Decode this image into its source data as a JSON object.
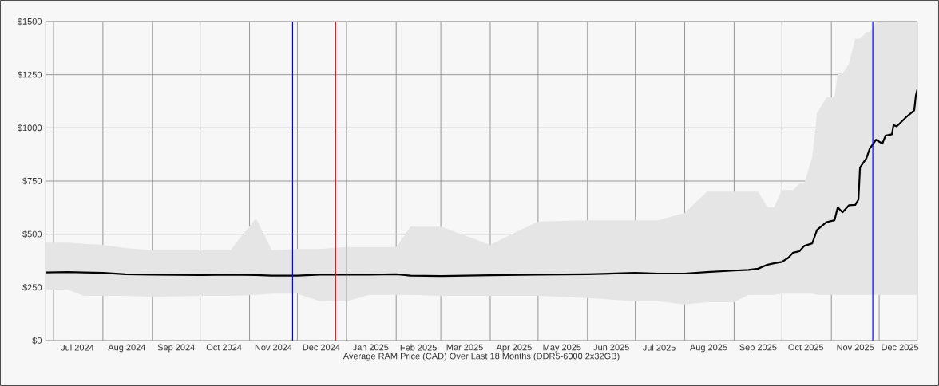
{
  "chart_data": {
    "type": "line",
    "xlabel": "Average RAM Price (CAD) Over Last 18 Months (DDR5-6000 2x32GB)",
    "xlim": [
      "2024-06-26",
      "2025-12-25"
    ],
    "ylim": [
      0,
      1500
    ],
    "xticks": [
      {
        "value": "2024-07-01",
        "label": null
      },
      {
        "value": "2024-07-16",
        "label": "Jul 2024"
      },
      {
        "value": "2024-08-01",
        "label": null
      },
      {
        "value": "2024-08-16",
        "label": "Aug 2024"
      },
      {
        "value": "2024-09-01",
        "label": null
      },
      {
        "value": "2024-09-16",
        "label": "Sep 2024"
      },
      {
        "value": "2024-10-01",
        "label": null
      },
      {
        "value": "2024-10-16",
        "label": "Oct 2024"
      },
      {
        "value": "2024-11-01",
        "label": null
      },
      {
        "value": "2024-11-16",
        "label": "Nov 2024"
      },
      {
        "value": "2024-12-01",
        "label": null
      },
      {
        "value": "2024-12-16",
        "label": "Dec 2024"
      },
      {
        "value": "2025-01-01",
        "label": null
      },
      {
        "value": "2025-01-16",
        "label": "Jan 2025"
      },
      {
        "value": "2025-02-01",
        "label": null
      },
      {
        "value": "2025-02-15",
        "label": "Feb 2025"
      },
      {
        "value": "2025-03-01",
        "label": null
      },
      {
        "value": "2025-03-16",
        "label": "Mar 2025"
      },
      {
        "value": "2025-04-01",
        "label": null
      },
      {
        "value": "2025-04-16",
        "label": "Apr 2025"
      },
      {
        "value": "2025-05-01",
        "label": null
      },
      {
        "value": "2025-05-16",
        "label": "May 2025"
      },
      {
        "value": "2025-06-01",
        "label": null
      },
      {
        "value": "2025-06-16",
        "label": "Jun 2025"
      },
      {
        "value": "2025-07-01",
        "label": null
      },
      {
        "value": "2025-07-16",
        "label": "Jul 2025"
      },
      {
        "value": "2025-08-01",
        "label": null
      },
      {
        "value": "2025-08-16",
        "label": "Aug 2025"
      },
      {
        "value": "2025-09-01",
        "label": null
      },
      {
        "value": "2025-09-16",
        "label": "Sep 2025"
      },
      {
        "value": "2025-10-01",
        "label": null
      },
      {
        "value": "2025-10-16",
        "label": "Oct 2025"
      },
      {
        "value": "2025-11-01",
        "label": null
      },
      {
        "value": "2025-11-16",
        "label": "Nov 2025"
      },
      {
        "value": "2025-12-01",
        "label": null
      },
      {
        "value": "2025-12-14",
        "label": "Dec 2025"
      }
    ],
    "yticks": [
      {
        "value": 0,
        "label": "$0"
      },
      {
        "value": 250,
        "label": "$250"
      },
      {
        "value": 500,
        "label": "$500"
      },
      {
        "value": 750,
        "label": "$750"
      },
      {
        "value": 1000,
        "label": "$1000"
      },
      {
        "value": 1250,
        "label": "$1250"
      },
      {
        "value": 1500,
        "label": "$1500"
      }
    ],
    "grid": true,
    "ref_lines": [
      {
        "axis": "x",
        "value": "2024-11-28",
        "color": "#0000ff"
      },
      {
        "axis": "x",
        "value": "2024-12-25",
        "color": "#ff0000"
      },
      {
        "axis": "x",
        "value": "2025-01-01",
        "color": "#666666"
      },
      {
        "axis": "x",
        "value": "2025-11-27",
        "color": "#0000ff"
      }
    ],
    "series": [
      {
        "color": "#000000",
        "x": [
          "2024-06-26",
          "2024-07-10",
          "2024-07-20",
          "2024-08-01",
          "2024-08-15",
          "2024-09-01",
          "2024-10-01",
          "2024-10-20",
          "2024-11-05",
          "2024-11-15",
          "2024-12-01",
          "2024-12-15",
          "2025-01-01",
          "2025-01-15",
          "2025-02-01",
          "2025-02-10",
          "2025-03-01",
          "2025-04-01",
          "2025-05-01",
          "2025-06-01",
          "2025-07-01",
          "2025-07-15",
          "2025-08-01",
          "2025-08-15",
          "2025-09-01",
          "2025-09-10",
          "2025-09-16",
          "2025-09-22",
          "2025-09-26",
          "2025-10-01",
          "2025-10-05",
          "2025-10-08",
          "2025-10-12",
          "2025-10-15",
          "2025-10-20",
          "2025-10-23",
          "2025-10-29",
          "2025-11-03",
          "2025-11-05",
          "2025-11-08",
          "2025-11-12",
          "2025-11-16",
          "2025-11-18",
          "2025-11-19",
          "2025-11-23",
          "2025-11-25",
          "2025-11-29",
          "2025-12-03",
          "2025-12-05",
          "2025-12-09",
          "2025-12-10",
          "2025-12-12",
          "2025-12-18",
          "2025-12-22",
          "2025-12-23",
          "2025-12-24",
          "2025-12-25"
        ],
        "values": [
          320,
          322,
          320,
          318,
          312,
          310,
          308,
          310,
          308,
          305,
          305,
          310,
          310,
          310,
          312,
          305,
          303,
          307,
          310,
          312,
          318,
          315,
          315,
          322,
          329,
          332,
          338,
          357,
          363,
          370,
          389,
          413,
          420,
          445,
          457,
          520,
          557,
          566,
          626,
          603,
          636,
          638,
          663,
          813,
          857,
          901,
          944,
          926,
          963,
          970,
          1013,
          1007,
          1051,
          1076,
          1082,
          1151,
          1182
        ],
        "lower": [
          240,
          240,
          210,
          210,
          210,
          205,
          210,
          210,
          215,
          220,
          220,
          185,
          185,
          215,
          215,
          215,
          210,
          210,
          210,
          200,
          185,
          185,
          170,
          180,
          180,
          215,
          215,
          215,
          215,
          220,
          220,
          220,
          220,
          220,
          220,
          215,
          215,
          215,
          215,
          215,
          215,
          215,
          215,
          215,
          215,
          215,
          215,
          215,
          215,
          215,
          215,
          215,
          215,
          215,
          215,
          215,
          215
        ],
        "upper": [
          460,
          460,
          455,
          450,
          435,
          425,
          425,
          425,
          575,
          425,
          430,
          430,
          440,
          440,
          440,
          535,
          535,
          450,
          560,
          565,
          565,
          565,
          600,
          700,
          700,
          700,
          700,
          626,
          626,
          708,
          708,
          708,
          738,
          738,
          863,
          1069,
          1144,
          1144,
          1257,
          1257,
          1300,
          1419,
          1419,
          1419,
          1450,
          1450,
          1495,
          1500,
          1500,
          1500,
          1500,
          1500,
          1500,
          1500,
          1500,
          1500,
          1500
        ]
      }
    ]
  }
}
